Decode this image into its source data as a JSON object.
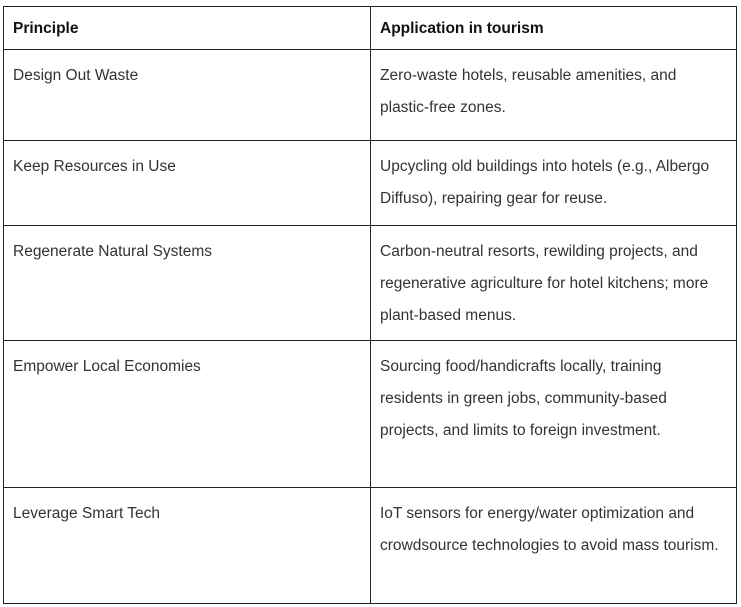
{
  "table": {
    "headers": [
      "Principle",
      "Application in tourism"
    ],
    "rows": [
      {
        "principle": "Design Out Waste",
        "application": "Zero-waste hotels, reusable amenities, and plastic-free zones."
      },
      {
        "principle": "Keep Resources in Use",
        "application": "Upcycling old buildings into hotels (e.g., Albergo Diffuso), repairing gear for reuse."
      },
      {
        "principle": "Regenerate Natural Systems",
        "application": "Carbon-neutral resorts, rewilding projects, and regenerative agriculture for hotel kitchens; more plant-based menus."
      },
      {
        "principle": "Empower Local Economies",
        "application": "Sourcing food/handicrafts locally, training residents in green jobs, community-based projects, and limits to foreign investment."
      },
      {
        "principle": "Leverage Smart Tech",
        "application": "IoT sensors for energy/water optimization and crowdsource technologies to avoid mass tourism."
      }
    ]
  }
}
